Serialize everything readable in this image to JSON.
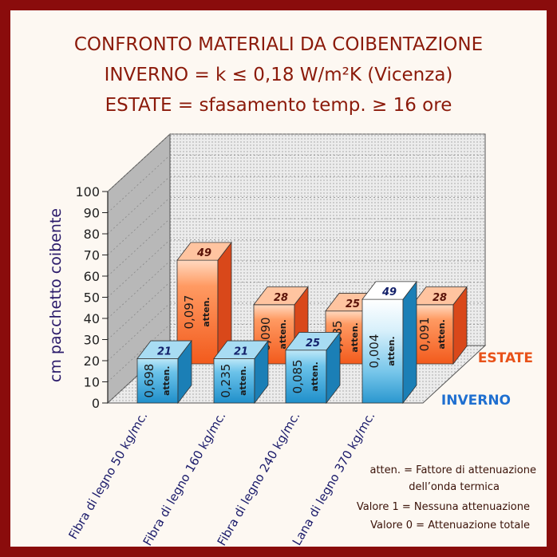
{
  "title_lines": [
    "CONFRONTO MATERIALI DA COIBENTAZIONE",
    "INVERNO = k ≤ 0,18 W/m²K (Vicenza)",
    "ESTATE = sfasamento temp. ≥ 16 ore"
  ],
  "chart_data": {
    "type": "bar",
    "title": "CONFRONTO MATERIALI DA COIBENTAZIONE",
    "ylabel": "cm pacchetto coibente",
    "ylim": [
      0,
      100
    ],
    "yticks": [
      0,
      10,
      20,
      30,
      40,
      50,
      60,
      70,
      80,
      90,
      100
    ],
    "categories": [
      "Fibra di legno 50 kg/mc.",
      "Fibra di legno 160 kg/mc.",
      "Fibra di legno 240 kg/mc.",
      "Lana di legno 370 kg/mc."
    ],
    "series": [
      {
        "name": "INVERNO",
        "color": "#2f9fd6",
        "values": [
          21,
          21,
          25,
          49
        ],
        "attenuation": [
          "0,698",
          "0,235",
          "0,085",
          "0,004"
        ]
      },
      {
        "name": "ESTATE",
        "color": "#f46a2c",
        "values": [
          49,
          28,
          25,
          28
        ],
        "attenuation": [
          "0,097",
          "0,090",
          "0,085",
          "0,091"
        ]
      }
    ],
    "bar_tag": "atten.",
    "grid": true
  },
  "legend_notes": [
    "atten. = Fattore di attenuazione",
    "dell’onda termica",
    "Valore 1 = Nessuna attenuazione",
    "Valore 0 = Attenuazione totale"
  ],
  "colors": {
    "frame": "#8a0c0c",
    "title": "#8b1a0a",
    "winter": "#2f9fd6",
    "summer": "#f46a2c",
    "winter_label": "#1f6fd0",
    "summer_label": "#e8521a"
  }
}
